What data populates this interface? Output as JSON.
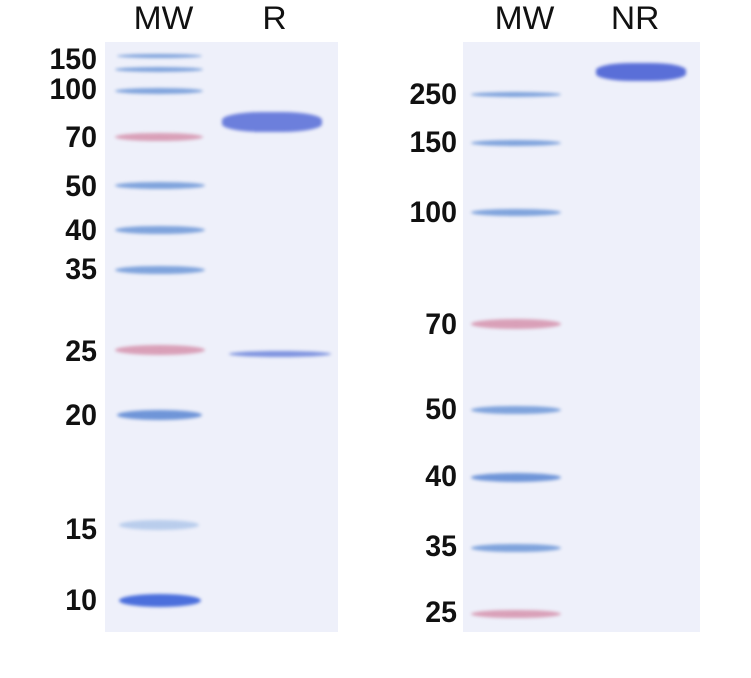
{
  "left_gel": {
    "lanes": [
      "MW",
      "R"
    ],
    "markers": [
      "150",
      "100",
      "70",
      "50",
      "40",
      "35",
      "25",
      "20",
      "15",
      "10"
    ]
  },
  "right_gel": {
    "lanes": [
      "MW",
      "NR"
    ],
    "markers": [
      "250",
      "150",
      "100",
      "70",
      "50",
      "40",
      "35",
      "25"
    ]
  },
  "colors": {
    "stain_blue": "#7fa3dc",
    "sample_band": "#5a6fd8",
    "marker_red": "#d9a0b8",
    "gel_bg": "#eef0fa"
  }
}
